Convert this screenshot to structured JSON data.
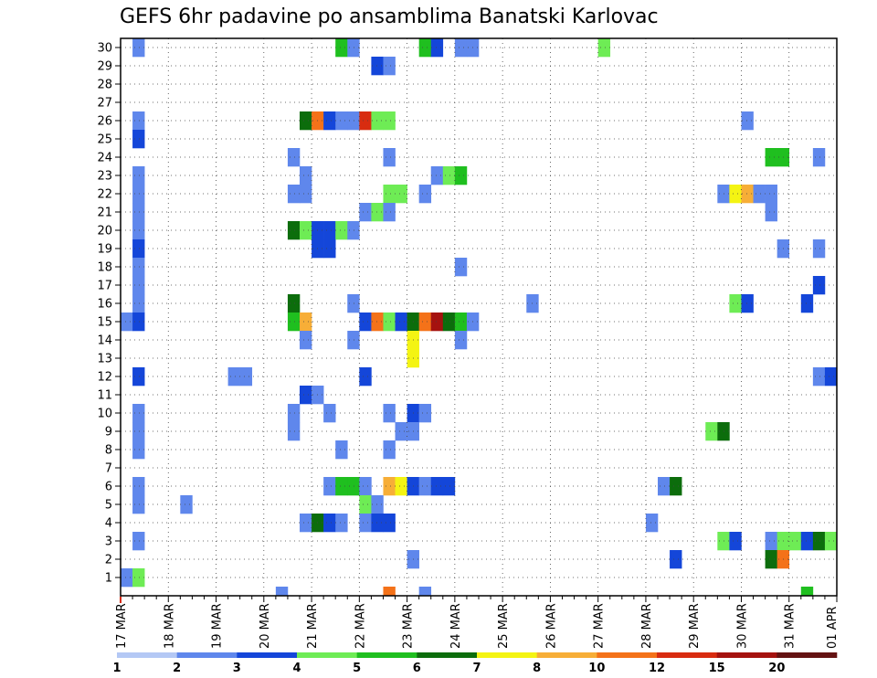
{
  "chart_data": {
    "type": "heatmap",
    "title": "GEFS 6hr padavine po ansamblima Banatski Karlovac",
    "xlabel": "",
    "ylabel": "",
    "x_tick_labels": [
      "17 MAR",
      "18 MAR",
      "19 MAR",
      "20 MAR",
      "21 MAR",
      "22 MAR",
      "23 MAR",
      "24 MAR",
      "25 MAR",
      "26 MAR",
      "27 MAR",
      "28 MAR",
      "29 MAR",
      "30 MAR",
      "31 MAR",
      "01 APR"
    ],
    "y_tick_labels": [
      "1",
      "2",
      "3",
      "4",
      "5",
      "6",
      "7",
      "8",
      "9",
      "10",
      "11",
      "12",
      "13",
      "14",
      "15",
      "16",
      "17",
      "18",
      "19",
      "20",
      "21",
      "22",
      "23",
      "24",
      "25",
      "26",
      "27",
      "28",
      "29",
      "30"
    ],
    "xlim_steps": [
      0,
      60
    ],
    "ylim_members": [
      0,
      30
    ],
    "grid": true,
    "colorbar": {
      "labels": [
        "1",
        "2",
        "3",
        "4",
        "5",
        "6",
        "7",
        "8",
        "10",
        "12",
        "15",
        "20"
      ],
      "colors": [
        "#b4c8f5",
        "#5f87ec",
        "#1446d9",
        "#6eec55",
        "#1fbf1f",
        "#0c6d0c",
        "#f4f413",
        "#f7ae37",
        "#f47219",
        "#d82c10",
        "#a5120f",
        "#641212"
      ]
    },
    "cells": [
      [
        1,
        30,
        1
      ],
      [
        18,
        30,
        4
      ],
      [
        19,
        30,
        1
      ],
      [
        25,
        30,
        4
      ],
      [
        26,
        30,
        2
      ],
      [
        28,
        30,
        1
      ],
      [
        29,
        30,
        1
      ],
      [
        40,
        30,
        3
      ],
      [
        21,
        29,
        2
      ],
      [
        22,
        29,
        1
      ],
      [
        1,
        26,
        1
      ],
      [
        15,
        26,
        5
      ],
      [
        16,
        26,
        8
      ],
      [
        17,
        26,
        2
      ],
      [
        18,
        26,
        1
      ],
      [
        19,
        26,
        1
      ],
      [
        20,
        26,
        9
      ],
      [
        21,
        26,
        3
      ],
      [
        22,
        26,
        3
      ],
      [
        52,
        26,
        1
      ],
      [
        1,
        25,
        2
      ],
      [
        14,
        24,
        1
      ],
      [
        22,
        24,
        1
      ],
      [
        54,
        24,
        4
      ],
      [
        55,
        24,
        4
      ],
      [
        58,
        24,
        1
      ],
      [
        1,
        23,
        1
      ],
      [
        15,
        23,
        1
      ],
      [
        26,
        23,
        1
      ],
      [
        27,
        23,
        3
      ],
      [
        28,
        23,
        4
      ],
      [
        1,
        22,
        1
      ],
      [
        14,
        22,
        1
      ],
      [
        15,
        22,
        1
      ],
      [
        22,
        22,
        3
      ],
      [
        23,
        22,
        3
      ],
      [
        25,
        22,
        1
      ],
      [
        50,
        22,
        1
      ],
      [
        51,
        22,
        6
      ],
      [
        52,
        22,
        7
      ],
      [
        53,
        22,
        1
      ],
      [
        54,
        22,
        1
      ],
      [
        1,
        21,
        1
      ],
      [
        20,
        21,
        1
      ],
      [
        21,
        21,
        3
      ],
      [
        22,
        21,
        1
      ],
      [
        54,
        21,
        1
      ],
      [
        1,
        20,
        1
      ],
      [
        14,
        20,
        5
      ],
      [
        15,
        20,
        3
      ],
      [
        16,
        20,
        2
      ],
      [
        17,
        20,
        2
      ],
      [
        18,
        20,
        3
      ],
      [
        19,
        20,
        1
      ],
      [
        1,
        19,
        2
      ],
      [
        16,
        19,
        2
      ],
      [
        17,
        19,
        2
      ],
      [
        55,
        19,
        1
      ],
      [
        58,
        19,
        1
      ],
      [
        1,
        18,
        1
      ],
      [
        28,
        18,
        1
      ],
      [
        1,
        17,
        1
      ],
      [
        58,
        17,
        2
      ],
      [
        1,
        16,
        1
      ],
      [
        14,
        16,
        5
      ],
      [
        19,
        16,
        1
      ],
      [
        34,
        16,
        1
      ],
      [
        51,
        16,
        3
      ],
      [
        52,
        16,
        2
      ],
      [
        57,
        16,
        2
      ],
      [
        0,
        15,
        1
      ],
      [
        1,
        15,
        2
      ],
      [
        14,
        15,
        4
      ],
      [
        15,
        15,
        7
      ],
      [
        20,
        15,
        2
      ],
      [
        21,
        15,
        8
      ],
      [
        22,
        15,
        3
      ],
      [
        23,
        15,
        2
      ],
      [
        24,
        15,
        5
      ],
      [
        25,
        15,
        8
      ],
      [
        26,
        15,
        10
      ],
      [
        27,
        15,
        5
      ],
      [
        28,
        15,
        4
      ],
      [
        29,
        15,
        1
      ],
      [
        15,
        14,
        1
      ],
      [
        19,
        14,
        1
      ],
      [
        24,
        14,
        6
      ],
      [
        28,
        14,
        1
      ],
      [
        24,
        13,
        6
      ],
      [
        1,
        12,
        2
      ],
      [
        9,
        12,
        1
      ],
      [
        10,
        12,
        1
      ],
      [
        20,
        12,
        2
      ],
      [
        58,
        12,
        1
      ],
      [
        59,
        12,
        2
      ],
      [
        15,
        11,
        2
      ],
      [
        16,
        11,
        1
      ],
      [
        1,
        10,
        1
      ],
      [
        14,
        10,
        1
      ],
      [
        17,
        10,
        1
      ],
      [
        22,
        10,
        1
      ],
      [
        24,
        10,
        2
      ],
      [
        25,
        10,
        1
      ],
      [
        1,
        9,
        1
      ],
      [
        14,
        9,
        1
      ],
      [
        23,
        9,
        1
      ],
      [
        24,
        9,
        1
      ],
      [
        49,
        9,
        3
      ],
      [
        50,
        9,
        5
      ],
      [
        1,
        8,
        1
      ],
      [
        18,
        8,
        1
      ],
      [
        22,
        8,
        1
      ],
      [
        1,
        6,
        1
      ],
      [
        17,
        6,
        1
      ],
      [
        18,
        6,
        4
      ],
      [
        19,
        6,
        4
      ],
      [
        20,
        6,
        1
      ],
      [
        22,
        6,
        7
      ],
      [
        23,
        6,
        6
      ],
      [
        24,
        6,
        2
      ],
      [
        25,
        6,
        1
      ],
      [
        26,
        6,
        2
      ],
      [
        27,
        6,
        2
      ],
      [
        45,
        6,
        1
      ],
      [
        46,
        6,
        5
      ],
      [
        1,
        5,
        1
      ],
      [
        5,
        5,
        1
      ],
      [
        20,
        5,
        3
      ],
      [
        21,
        5,
        1
      ],
      [
        15,
        4,
        1
      ],
      [
        16,
        4,
        5
      ],
      [
        17,
        4,
        2
      ],
      [
        18,
        4,
        1
      ],
      [
        20,
        4,
        1
      ],
      [
        21,
        4,
        2
      ],
      [
        22,
        4,
        2
      ],
      [
        44,
        4,
        1
      ],
      [
        1,
        3,
        1
      ],
      [
        50,
        3,
        3
      ],
      [
        51,
        3,
        2
      ],
      [
        54,
        3,
        1
      ],
      [
        55,
        3,
        3
      ],
      [
        56,
        3,
        3
      ],
      [
        57,
        3,
        2
      ],
      [
        58,
        3,
        5
      ],
      [
        59,
        3,
        3
      ],
      [
        24,
        2,
        1
      ],
      [
        46,
        2,
        2
      ],
      [
        54,
        2,
        5
      ],
      [
        55,
        2,
        8
      ],
      [
        0,
        1,
        1
      ],
      [
        1,
        1,
        3
      ],
      [
        13,
        0,
        1
      ],
      [
        22,
        0,
        8
      ],
      [
        25,
        0,
        1
      ],
      [
        57,
        0,
        4
      ]
    ]
  }
}
